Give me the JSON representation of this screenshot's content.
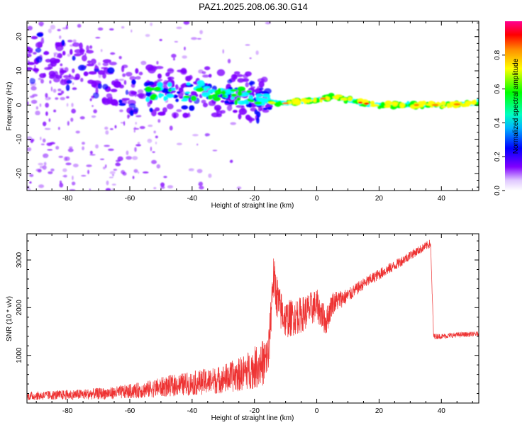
{
  "figure": {
    "title": "PAZ1.2025.208.06.30.G14"
  },
  "chart_data": [
    {
      "type": "heatmap",
      "title": "PAZ1.2025.208.06.30.G14",
      "xlabel": "Height of straight line (km)",
      "ylabel": "Frequency (Hz)",
      "xlim": [
        -93,
        52
      ],
      "ylim": [
        -25,
        24.5
      ],
      "x_ticks": [
        -80,
        -60,
        -40,
        -20,
        0,
        20,
        40
      ],
      "x_tick_labels": [
        "-80",
        "-60",
        "-40",
        "-20",
        "0",
        "20",
        "40"
      ],
      "y_ticks": [
        -20,
        -10,
        0,
        10,
        20
      ],
      "y_tick_labels": [
        "-20",
        "-10",
        "0",
        "10",
        "20"
      ],
      "ridge": {
        "x": [
          -90,
          -80,
          -75,
          -70,
          -65,
          -60,
          -55,
          -50,
          -45,
          -40,
          -35,
          -30,
          -25,
          -20,
          -15,
          -10,
          0,
          5,
          10,
          15,
          20,
          30,
          40,
          52
        ],
        "frequency": [
          14,
          12,
          11,
          9,
          6,
          4,
          4,
          4,
          3.5,
          4,
          4.5,
          3,
          2.5,
          2,
          1,
          0.5,
          1.5,
          2.5,
          1.5,
          0.5,
          0,
          0,
          0,
          0.5
        ]
      },
      "colorbar": {
        "label": "Normalized spectral amplitude",
        "range": [
          0,
          1
        ],
        "ticks": [
          0.0,
          0.2,
          0.4,
          0.6,
          0.8
        ],
        "tick_labels": [
          "0.0",
          "0.2",
          "0.4",
          "0.6",
          "0.8"
        ],
        "colormap": [
          "#ffffff",
          "#8000ff",
          "#0000ff",
          "#00ffff",
          "#00ff00",
          "#ffff00",
          "#ff8000",
          "#ff0000",
          "#ff00a0"
        ]
      }
    },
    {
      "type": "line",
      "xlabel": "Height of straight line (km)",
      "ylabel": "SNR (10 * v/v)",
      "xlim": [
        -93,
        52
      ],
      "ylim": [
        0,
        3550
      ],
      "x_ticks": [
        -80,
        -60,
        -40,
        -20,
        0,
        20,
        40
      ],
      "x_tick_labels": [
        "-80",
        "-60",
        "-40",
        "-20",
        "0",
        "20",
        "40"
      ],
      "y_ticks": [
        1000,
        2000,
        3000
      ],
      "y_tick_labels": [
        "1000",
        "2000",
        "3000"
      ],
      "series": [
        {
          "color": "#ee3333",
          "x": [
            -93,
            -85,
            -75,
            -65,
            -55,
            -48,
            -40,
            -32,
            -25,
            -20,
            -17,
            -15.5,
            -14,
            -12,
            -10,
            -5,
            0,
            3,
            5,
            10,
            15,
            20,
            25,
            30,
            34,
            36.5,
            37.5,
            40,
            45,
            52
          ],
          "y": [
            140,
            160,
            180,
            200,
            260,
            330,
            400,
            480,
            600,
            760,
            900,
            1000,
            2650,
            2000,
            1750,
            1850,
            2050,
            1700,
            2100,
            2250,
            2500,
            2700,
            2880,
            3100,
            3250,
            3350,
            1400,
            1400,
            1430,
            1450
          ],
          "noise": [
            80,
            90,
            100,
            120,
            160,
            200,
            230,
            260,
            320,
            400,
            450,
            480,
            500,
            450,
            400,
            380,
            350,
            300,
            250,
            150,
            120,
            120,
            110,
            100,
            90,
            90,
            60,
            55,
            55,
            50
          ]
        }
      ]
    }
  ]
}
